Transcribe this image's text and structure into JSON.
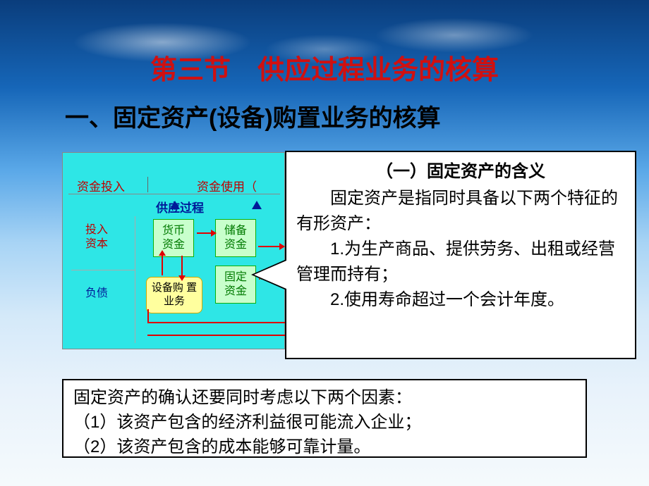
{
  "title_main": "第三节　供应过程业务的核算",
  "title_sub": "一、固定资产(设备)购置业务的核算",
  "diagram": {
    "header1": "资金投入",
    "header2": "资金使用（",
    "subheader": "供应过程",
    "box_invest": "投入\n资本",
    "box_debt": "负债",
    "box_currency": "货币\n资金",
    "box_reserve": "储备\n资金",
    "box_fixed": "固定\n资金",
    "box_yellow": "设备购\n置业务"
  },
  "callout": {
    "title": "（一）固定资产的含义",
    "line1": "　　固定资产是指同时具备以下两个特征的有形资产：",
    "line2": "　　1.为生产商品、提供劳务、出租或经营管理而持有；",
    "line3": "　　2.使用寿命超过一个会计年度。"
  },
  "note": {
    "line1": "固定资产的确认还要同时考虑以下两个因素：",
    "line2": "（1）该资产包含的经济利益很可能流入企业；",
    "line3": "（2）该资产包含的成本能够可靠计量。"
  }
}
